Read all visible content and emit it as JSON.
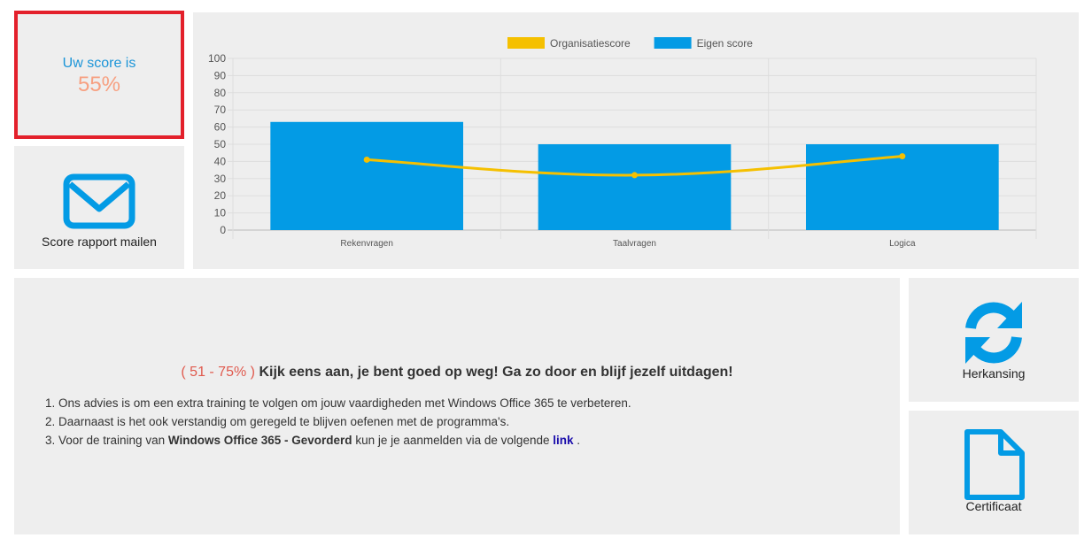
{
  "score": {
    "label": "Uw score is",
    "value": "55%"
  },
  "mail": {
    "label": "Score rapport mailen",
    "icon": "envelope-icon"
  },
  "retry": {
    "label": "Herkansing",
    "icon": "refresh-icon"
  },
  "certificate": {
    "label": "Certificaat",
    "icon": "document-icon"
  },
  "advice": {
    "range": "( 51 - 75% )",
    "title": "Kijk eens aan, je bent goed op weg! Ga zo door en blijf jezelf uitdagen!",
    "item1": "Ons advies is om een extra training te volgen om jouw vaardigheden met Windows Office 365 te verbeteren.",
    "item2": "Daarnaast is het ook verstandig om geregeld te blijven oefenen met de programma's.",
    "item3_pre": "Voor de training van",
    "item3_bold": "Windows Office 365 - Gevorderd",
    "item3_mid": "kun je je aanmelden via de volgende",
    "item3_link": "link",
    "item3_end": "."
  },
  "colors": {
    "accent_blue": "#039be5",
    "line_yellow": "#f5c000",
    "score_orange": "#f7a081",
    "highlight_red": "#e3202b"
  },
  "chart_data": {
    "type": "bar",
    "categories": [
      "Rekenvragen",
      "Taalvragen",
      "Logica"
    ],
    "series": [
      {
        "name": "Organisatiescore",
        "type": "line",
        "color": "#f5c000",
        "values": [
          41,
          32,
          43
        ]
      },
      {
        "name": "Eigen score",
        "type": "bar",
        "color": "#039be5",
        "values": [
          63,
          50,
          50
        ]
      }
    ],
    "ylim": [
      0,
      100
    ],
    "yticks": [
      0,
      10,
      20,
      30,
      40,
      50,
      60,
      70,
      80,
      90,
      100
    ],
    "grid": true,
    "legend": "top-center"
  }
}
